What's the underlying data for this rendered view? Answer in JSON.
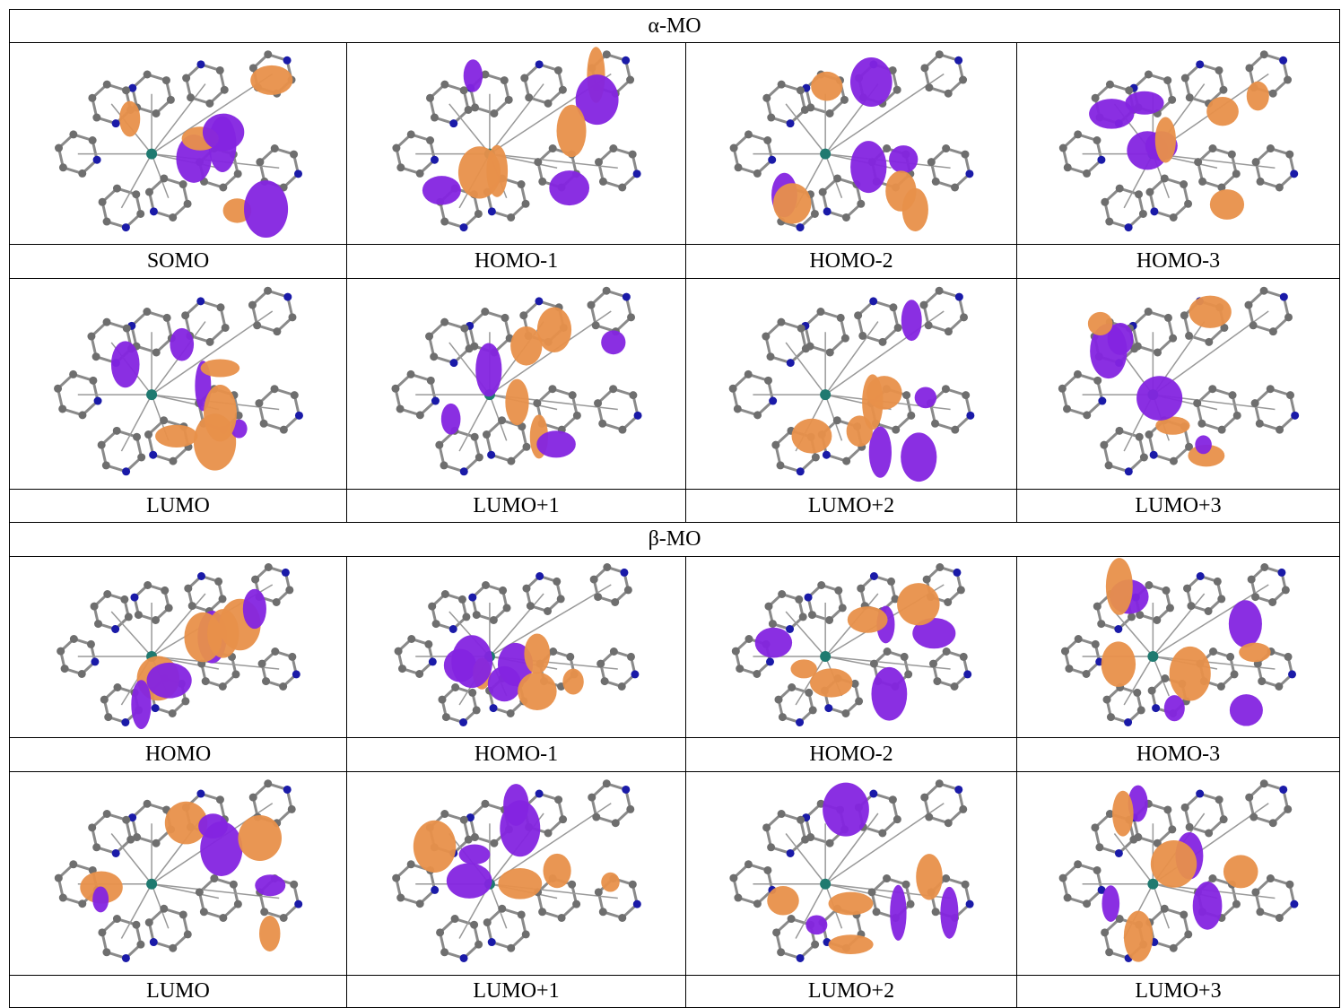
{
  "sections": [
    {
      "title": "α-MO",
      "rows": [
        [
          "SOMO",
          "HOMO-1",
          "HOMO-2",
          "HOMO-3"
        ],
        [
          "LUMO",
          "LUMO+1",
          "LUMO+2",
          "LUMO+3"
        ]
      ]
    },
    {
      "title": "β-MO",
      "rows": [
        [
          "HOMO",
          "HOMO-1",
          "HOMO-2",
          "HOMO-3"
        ],
        [
          "LUMO",
          "LUMO+1",
          "LUMO+2",
          "LUMO+3"
        ]
      ]
    }
  ]
}
